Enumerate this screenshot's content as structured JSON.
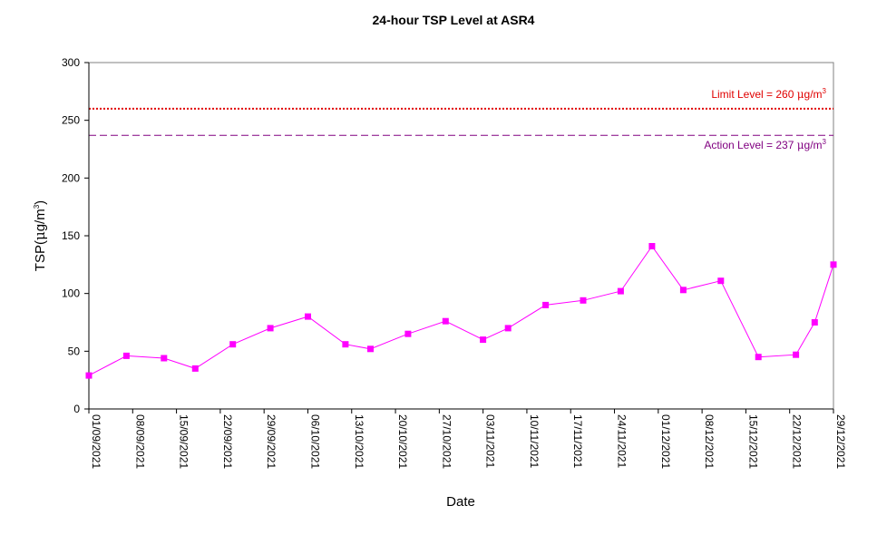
{
  "chart_data": {
    "type": "line",
    "title": "24-hour TSP Level at ASR4",
    "xlabel": "Date",
    "ylabel": {
      "main": "TSP(",
      "mu": "μ",
      "unit": "g/m",
      "sup": "3",
      "close": ")"
    },
    "ylim": [
      0,
      300
    ],
    "yticks": [
      0,
      50,
      100,
      150,
      200,
      250,
      300
    ],
    "xlim": [
      "2021-09-01",
      "2021-12-29"
    ],
    "xtick_labels": [
      "01/09/2021",
      "08/09/2021",
      "15/09/2021",
      "22/09/2021",
      "29/09/2021",
      "06/10/2021",
      "13/10/2021",
      "20/10/2021",
      "27/10/2021",
      "03/11/2021",
      "10/11/2021",
      "17/11/2021",
      "24/11/2021",
      "01/12/2021",
      "08/12/2021",
      "15/12/2021",
      "22/12/2021",
      "29/12/2021"
    ],
    "series": [
      {
        "color": "#ff00ff",
        "marker": "square",
        "points": [
          {
            "x": "2021-09-01",
            "y": 29
          },
          {
            "x": "2021-09-07",
            "y": 46
          },
          {
            "x": "2021-09-13",
            "y": 44
          },
          {
            "x": "2021-09-18",
            "y": 35
          },
          {
            "x": "2021-09-24",
            "y": 56
          },
          {
            "x": "2021-09-30",
            "y": 70
          },
          {
            "x": "2021-10-06",
            "y": 80
          },
          {
            "x": "2021-10-12",
            "y": 56
          },
          {
            "x": "2021-10-16",
            "y": 52
          },
          {
            "x": "2021-10-22",
            "y": 65
          },
          {
            "x": "2021-10-28",
            "y": 76
          },
          {
            "x": "2021-11-03",
            "y": 60
          },
          {
            "x": "2021-11-07",
            "y": 70
          },
          {
            "x": "2021-11-13",
            "y": 90
          },
          {
            "x": "2021-11-19",
            "y": 94
          },
          {
            "x": "2021-11-25",
            "y": 102
          },
          {
            "x": "2021-11-30",
            "y": 141
          },
          {
            "x": "2021-12-05",
            "y": 103
          },
          {
            "x": "2021-12-11",
            "y": 111
          },
          {
            "x": "2021-12-17",
            "y": 45
          },
          {
            "x": "2021-12-23",
            "y": 47
          },
          {
            "x": "2021-12-26",
            "y": 75
          },
          {
            "x": "2021-12-29",
            "y": 125
          }
        ]
      }
    ],
    "reference_lines": [
      {
        "name": "limit",
        "value": 260,
        "label_main": "Limit Level  = 260 ",
        "label_mu": "μ",
        "label_unit": "g/m",
        "label_sup": "3",
        "color": "#e00000",
        "style": "dotted",
        "label_position": "above-right"
      },
      {
        "name": "action",
        "value": 237,
        "label_main": "Action Level  = 237 ",
        "label_mu": "μ",
        "label_unit": "g/m",
        "label_sup": "3",
        "color": "#800080",
        "style": "dashed",
        "label_position": "below-right"
      }
    ],
    "grid": false,
    "legend": "none"
  }
}
